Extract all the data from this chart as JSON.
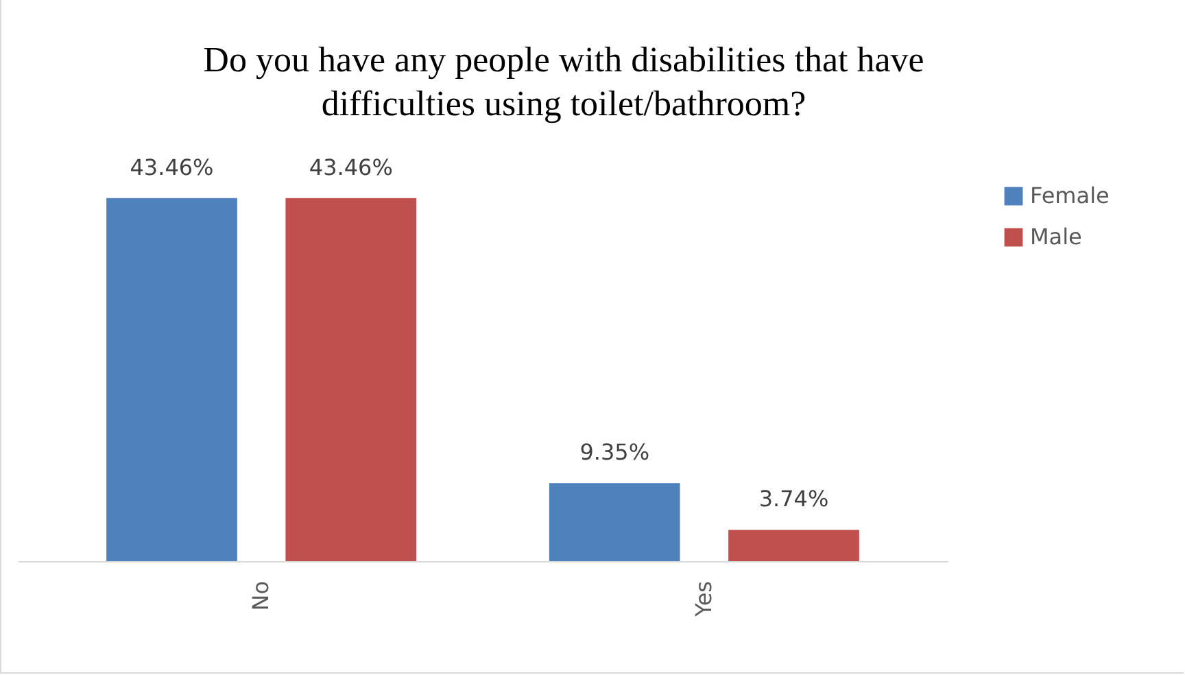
{
  "chart_data": {
    "type": "bar",
    "title": "Do you have any people with disabilities that have difficulties using toilet/bathroom?",
    "categories": [
      "No",
      "Yes"
    ],
    "series": [
      {
        "name": "Female",
        "color": "#4f81bd",
        "values": [
          43.46,
          9.35
        ],
        "value_labels": [
          "43.46%",
          "9.35%"
        ]
      },
      {
        "name": "Male",
        "color": "#c0504d",
        "values": [
          43.46,
          3.74
        ],
        "value_labels": [
          "43.46%",
          "3.74%"
        ]
      }
    ],
    "legend": "right",
    "grid": false
  }
}
